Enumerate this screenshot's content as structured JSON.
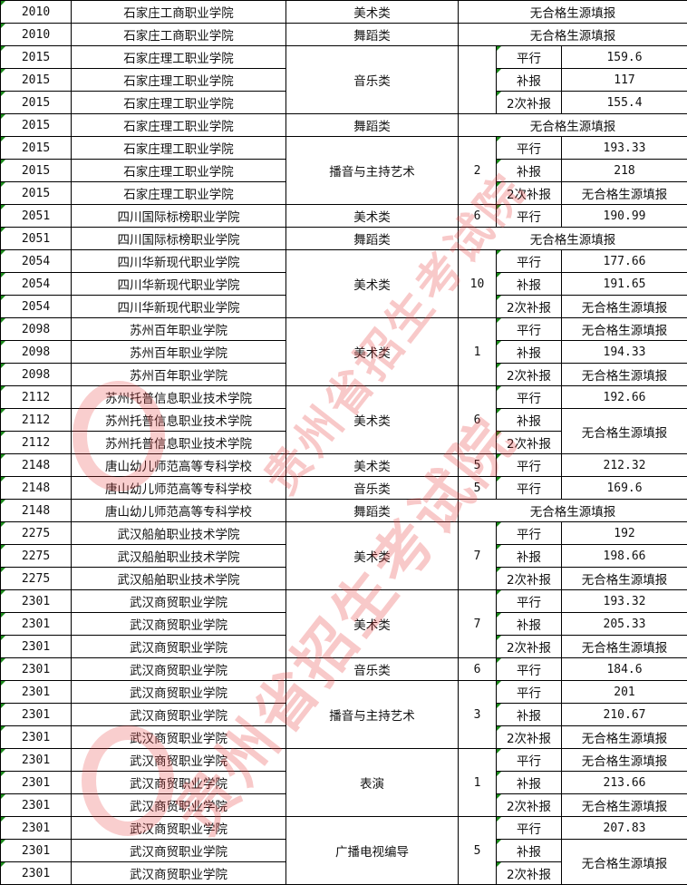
{
  "watermark": {
    "text": "贵州省招生考试院",
    "color": "#e63c3c"
  },
  "rows": [
    {
      "code": "2010",
      "school": "石家庄工商职业学院"
    },
    {
      "code": "2010",
      "school": "石家庄工商职业学院"
    },
    {
      "code": "2015",
      "school": "石家庄理工职业学院"
    },
    {
      "code": "2015",
      "school": "石家庄理工职业学院"
    },
    {
      "code": "2015",
      "school": "石家庄理工职业学院"
    },
    {
      "code": "2015",
      "school": "石家庄理工职业学院"
    },
    {
      "code": "2015",
      "school": "石家庄理工职业学院"
    },
    {
      "code": "2015",
      "school": "石家庄理工职业学院"
    },
    {
      "code": "2015",
      "school": "石家庄理工职业学院"
    },
    {
      "code": "2051",
      "school": "四川国际标榜职业学院"
    },
    {
      "code": "2051",
      "school": "四川国际标榜职业学院"
    },
    {
      "code": "2054",
      "school": "四川华新现代职业学院"
    },
    {
      "code": "2054",
      "school": "四川华新现代职业学院"
    },
    {
      "code": "2054",
      "school": "四川华新现代职业学院"
    },
    {
      "code": "2098",
      "school": "苏州百年职业学院"
    },
    {
      "code": "2098",
      "school": "苏州百年职业学院"
    },
    {
      "code": "2098",
      "school": "苏州百年职业学院"
    },
    {
      "code": "2112",
      "school": "苏州托普信息职业技术学院"
    },
    {
      "code": "2112",
      "school": "苏州托普信息职业技术学院"
    },
    {
      "code": "2112",
      "school": "苏州托普信息职业技术学院"
    },
    {
      "code": "2148",
      "school": "唐山幼儿师范高等专科学校"
    },
    {
      "code": "2148",
      "school": "唐山幼儿师范高等专科学校"
    },
    {
      "code": "2148",
      "school": "唐山幼儿师范高等专科学校"
    },
    {
      "code": "2275",
      "school": "武汉船舶职业技术学院"
    },
    {
      "code": "2275",
      "school": "武汉船舶职业技术学院"
    },
    {
      "code": "2275",
      "school": "武汉船舶职业技术学院"
    },
    {
      "code": "2301",
      "school": "武汉商贸职业学院"
    },
    {
      "code": "2301",
      "school": "武汉商贸职业学院"
    },
    {
      "code": "2301",
      "school": "武汉商贸职业学院"
    },
    {
      "code": "2301",
      "school": "武汉商贸职业学院"
    },
    {
      "code": "2301",
      "school": "武汉商贸职业学院"
    },
    {
      "code": "2301",
      "school": "武汉商贸职业学院"
    },
    {
      "code": "2301",
      "school": "武汉商贸职业学院"
    },
    {
      "code": "2301",
      "school": "武汉商贸职业学院"
    },
    {
      "code": "2301",
      "school": "武汉商贸职业学院"
    },
    {
      "code": "2301",
      "school": "武汉商贸职业学院"
    },
    {
      "code": "2301",
      "school": "武汉商贸职业学院"
    },
    {
      "code": "2301",
      "school": "武汉商贸职业学院"
    },
    {
      "code": "2301",
      "school": "武汉商贸职业学院"
    }
  ],
  "groups": [
    {
      "category": "美术类",
      "note": "无合格生源填报"
    },
    {
      "category": "舞蹈类",
      "note": "无合格生源填报"
    },
    {
      "category": "音乐类",
      "count": "",
      "batches": [
        {
          "batch": "平行",
          "score": "159.6"
        },
        {
          "batch": "补报",
          "score": "117"
        },
        {
          "batch": "2次补报",
          "score": "155.4"
        }
      ]
    },
    {
      "category": "舞蹈类",
      "note": "无合格生源填报"
    },
    {
      "category": "播音与主持艺术",
      "count": "2",
      "batches": [
        {
          "batch": "平行",
          "score": "193.33"
        },
        {
          "batch": "补报",
          "score": "218"
        },
        {
          "batch": "2次补报",
          "score": "无合格生源填报"
        }
      ]
    },
    {
      "category": "美术类",
      "count": "6",
      "batches": [
        {
          "batch": "平行",
          "score": "190.99"
        }
      ]
    },
    {
      "category": "舞蹈类",
      "note": "无合格生源填报"
    },
    {
      "category": "美术类",
      "count": "10",
      "batches": [
        {
          "batch": "平行",
          "score": "177.66"
        },
        {
          "batch": "补报",
          "score": "191.65"
        },
        {
          "batch": "2次补报",
          "score": "无合格生源填报"
        }
      ]
    },
    {
      "category": "美术类",
      "count": "1",
      "batches": [
        {
          "batch": "平行",
          "score": "无合格生源填报"
        },
        {
          "batch": "补报",
          "score": "194.33"
        },
        {
          "batch": "2次补报",
          "score": "无合格生源填报"
        }
      ]
    },
    {
      "category": "美术类",
      "count": "6",
      "batches": [
        {
          "batch": "平行",
          "score": "192.66"
        },
        {
          "batch": "补报",
          "score": "无合格生源填报"
        },
        {
          "batch": "2次补报"
        }
      ]
    },
    {
      "category": "美术类",
      "count": "5",
      "batches": [
        {
          "batch": "平行",
          "score": "212.32"
        }
      ]
    },
    {
      "category": "音乐类",
      "count": "5",
      "batches": [
        {
          "batch": "平行",
          "score": "169.6"
        }
      ]
    },
    {
      "category": "舞蹈类",
      "note": "无合格生源填报"
    },
    {
      "category": "美术类",
      "count": "7",
      "batches": [
        {
          "batch": "平行",
          "score": "192"
        },
        {
          "batch": "补报",
          "score": "198.66"
        },
        {
          "batch": "2次补报",
          "score": "无合格生源填报"
        }
      ]
    },
    {
      "category": "美术类",
      "count": "7",
      "batches": [
        {
          "batch": "平行",
          "score": "193.32"
        },
        {
          "batch": "补报",
          "score": "205.33"
        },
        {
          "batch": "2次补报",
          "score": "无合格生源填报"
        }
      ]
    },
    {
      "category": "音乐类",
      "count": "6",
      "batches": [
        {
          "batch": "平行",
          "score": "184.6"
        }
      ]
    },
    {
      "category": "播音与主持艺术",
      "count": "3",
      "batches": [
        {
          "batch": "平行",
          "score": "201"
        },
        {
          "batch": "补报",
          "score": "210.67"
        },
        {
          "batch": "2次补报",
          "score": "无合格生源填报"
        }
      ]
    },
    {
      "category": "表演",
      "count": "1",
      "batches": [
        {
          "batch": "平行",
          "score": "无合格生源填报"
        },
        {
          "batch": "补报",
          "score": "213.66"
        },
        {
          "batch": "2次补报",
          "score": "无合格生源填报"
        }
      ]
    },
    {
      "category": "广播电视编导",
      "count": "5",
      "batches": [
        {
          "batch": "平行",
          "score": "207.83"
        },
        {
          "batch": "补报",
          "score": "无合格生源填报"
        },
        {
          "batch": "2次补报"
        }
      ]
    }
  ]
}
